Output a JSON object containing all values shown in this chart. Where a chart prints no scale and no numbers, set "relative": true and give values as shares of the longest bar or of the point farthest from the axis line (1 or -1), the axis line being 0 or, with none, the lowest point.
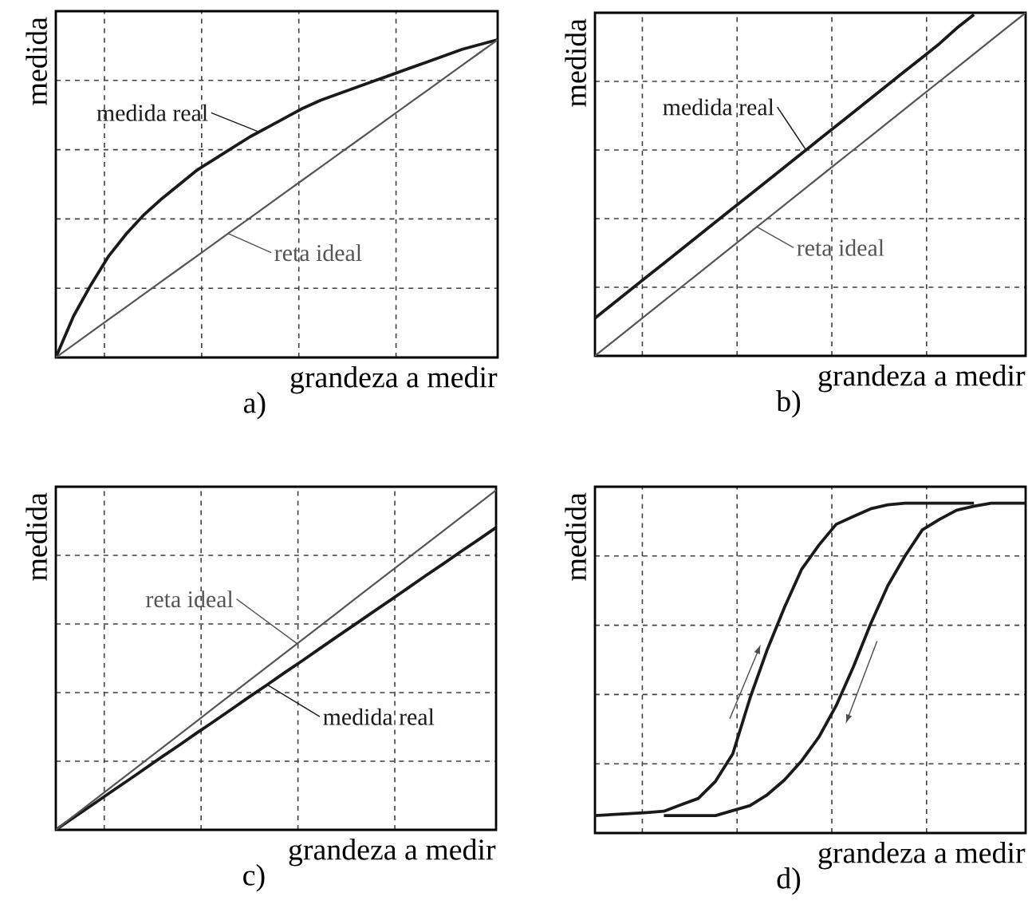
{
  "chart_data": [
    {
      "type": "line",
      "title": "a)",
      "xlabel": "grandeza a medir",
      "ylabel": "medida",
      "relative": true,
      "grid": true,
      "categories": [
        null,
        null,
        null,
        null,
        null,
        null,
        null,
        null,
        null,
        null,
        null,
        null,
        null,
        null,
        null,
        null,
        null,
        null,
        null,
        null,
        null,
        null,
        null,
        null,
        null,
        null
      ],
      "series": [
        {
          "name": "medida real",
          "color": "#1a1a1a",
          "values": [
            0,
            0.13,
            0.23,
            0.32,
            0.39,
            0.45,
            0.5,
            0.545,
            0.59,
            0.625,
            0.66,
            0.695,
            0.725,
            0.755,
            0.785,
            0.81,
            0.83,
            0.85,
            0.87,
            0.89,
            0.91,
            0.93,
            0.95,
            0.97,
            0.985,
            1
          ]
        },
        {
          "name": "reta ideal",
          "color": "#555555",
          "values": [
            0,
            0.04,
            0.08,
            0.12,
            0.16,
            0.2,
            0.24,
            0.28,
            0.32,
            0.36,
            0.4,
            0.44,
            0.48,
            0.52,
            0.56,
            0.6,
            0.64,
            0.68,
            0.72,
            0.76,
            0.8,
            0.84,
            0.88,
            0.92,
            0.96,
            1
          ]
        }
      ]
    },
    {
      "type": "line",
      "title": "b)",
      "xlabel": "grandeza a medir",
      "ylabel": "medida",
      "relative": true,
      "grid": true,
      "categories": [
        null,
        null,
        null,
        null,
        null,
        null,
        null,
        null,
        null,
        null,
        null,
        null,
        null,
        null,
        null,
        null,
        null,
        null,
        null,
        null,
        null,
        null,
        null,
        null,
        null,
        null
      ],
      "series": [
        {
          "name": "medida real",
          "color": "#1a1a1a",
          "values": [
            0.11,
            0.15,
            0.19,
            0.23,
            0.27,
            0.31,
            0.35,
            0.39,
            0.43,
            0.47,
            0.51,
            0.55,
            0.59,
            0.63,
            0.67,
            0.71,
            0.75,
            0.79,
            0.83,
            0.87,
            0.91,
            0.955,
            0.995,
            null,
            null,
            null
          ]
        },
        {
          "name": "reta ideal",
          "color": "#555555",
          "values": [
            0,
            0.04,
            0.08,
            0.12,
            0.16,
            0.2,
            0.24,
            0.28,
            0.32,
            0.36,
            0.4,
            0.44,
            0.48,
            0.52,
            0.56,
            0.6,
            0.64,
            0.68,
            0.72,
            0.76,
            0.8,
            0.84,
            0.88,
            0.92,
            0.96,
            1
          ]
        }
      ]
    },
    {
      "type": "line",
      "title": "c)",
      "xlabel": "grandeza a medir",
      "ylabel": "medida",
      "relative": true,
      "grid": true,
      "categories": [
        null,
        null,
        null,
        null,
        null,
        null,
        null,
        null,
        null,
        null,
        null,
        null,
        null,
        null,
        null,
        null,
        null,
        null,
        null,
        null,
        null,
        null,
        null,
        null,
        null,
        null
      ],
      "series": [
        {
          "name": "medida real",
          "color": "#1a1a1a",
          "values": [
            0,
            0.036,
            0.071,
            0.107,
            0.142,
            0.178,
            0.214,
            0.249,
            0.285,
            0.32,
            0.356,
            0.392,
            0.427,
            0.463,
            0.498,
            0.534,
            0.57,
            0.605,
            0.641,
            0.676,
            0.712,
            0.748,
            0.783,
            0.819,
            0.854,
            0.89
          ]
        },
        {
          "name": "reta ideal",
          "color": "#555555",
          "values": [
            0,
            0.04,
            0.08,
            0.12,
            0.16,
            0.2,
            0.24,
            0.28,
            0.32,
            0.36,
            0.4,
            0.44,
            0.48,
            0.52,
            0.56,
            0.6,
            0.64,
            0.68,
            0.72,
            0.76,
            0.8,
            0.84,
            0.88,
            0.92,
            0.96,
            1
          ]
        }
      ]
    },
    {
      "type": "line",
      "title": "d)",
      "xlabel": "grandeza a medir",
      "ylabel": "medida",
      "relative": true,
      "grid": true,
      "categories": [
        null,
        null,
        null,
        null,
        null,
        null,
        null,
        null,
        null,
        null,
        null,
        null,
        null,
        null,
        null,
        null,
        null,
        null,
        null,
        null,
        null,
        null,
        null,
        null,
        null,
        null
      ],
      "series": [
        {
          "color": "#1a1a1a",
          "values": [
            0.053,
            0.056,
            0.059,
            0.062,
            0.066,
            0.086,
            0.105,
            0.157,
            0.24,
            0.409,
            0.556,
            0.684,
            0.8,
            0.873,
            0.936,
            0.96,
            0.983,
            0.995,
            1,
            1,
            1,
            1,
            1,
            null,
            null,
            null
          ]
        },
        {
          "color": "#1a1a1a",
          "values": [
            null,
            null,
            null,
            null,
            0.053,
            0.053,
            0.053,
            0.053,
            0.068,
            0.083,
            0.116,
            0.161,
            0.219,
            0.291,
            0.386,
            0.504,
            0.634,
            0.75,
            0.84,
            0.919,
            0.951,
            0.979,
            0.991,
            1,
            1,
            1
          ]
        }
      ]
    }
  ]
}
